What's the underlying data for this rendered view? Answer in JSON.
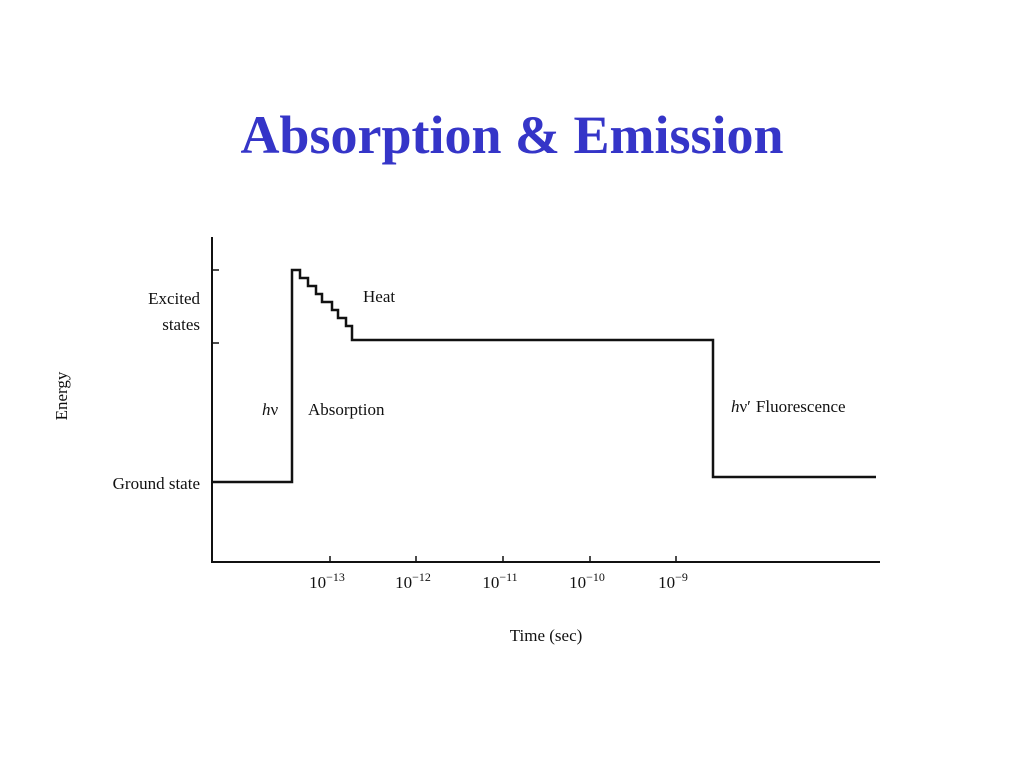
{
  "title": "Absorption & Emission",
  "diagram": {
    "y_axis_label": "Energy",
    "x_axis_label": "Time (sec)",
    "level_labels": {
      "excited": [
        "Excited",
        "states"
      ],
      "ground": "Ground state"
    },
    "annotations": {
      "heat": "Heat",
      "absorption": {
        "symbol_italic": "h",
        "symbol_rest": "ν",
        "text": "Absorption"
      },
      "fluorescence": {
        "symbol_italic": "h",
        "symbol_rest": "ν′",
        "text": "Fluorescence"
      }
    },
    "x_ticks": [
      {
        "base": "10",
        "exponent": "−13"
      },
      {
        "base": "10",
        "exponent": "−12"
      },
      {
        "base": "10",
        "exponent": "−11"
      },
      {
        "base": "10",
        "exponent": "−10"
      },
      {
        "base": "10",
        "exponent": "−9"
      }
    ]
  }
}
